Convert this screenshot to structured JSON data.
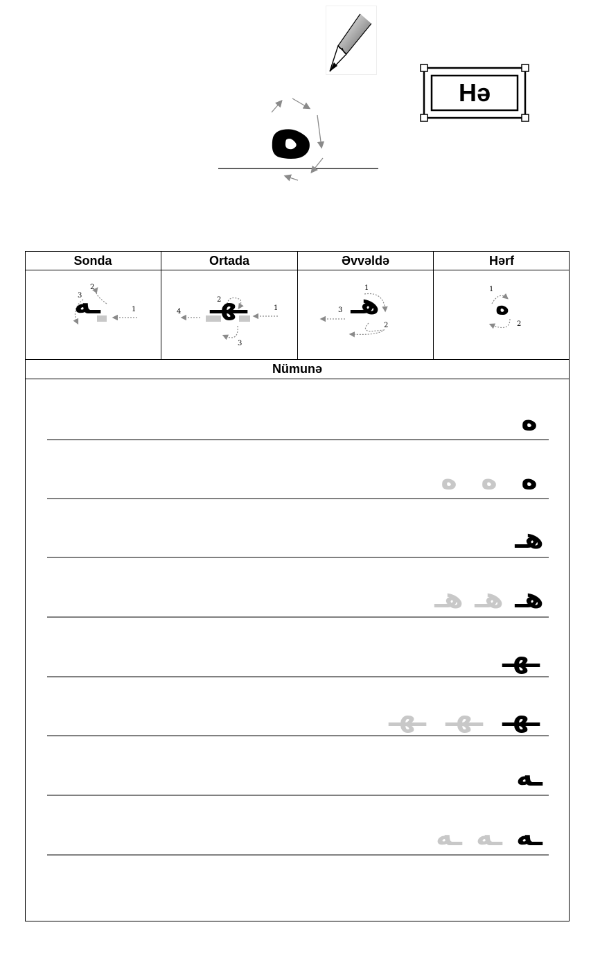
{
  "letter_label": "Hə",
  "main_glyph": "ه",
  "table": {
    "headers": {
      "sonda": "Sonda",
      "ortada": "Ortada",
      "evvelde": "Əvvəldə",
      "herf": "Hərf"
    },
    "sample_header": "Nümunə",
    "cells": {
      "sonda": {
        "glyph": "ـه",
        "steps": [
          "1",
          "2",
          "3"
        ]
      },
      "ortada": {
        "glyph": "ـهـ",
        "steps": [
          "1",
          "2",
          "3",
          "4"
        ]
      },
      "evvelde": {
        "glyph": "هـ",
        "steps": [
          "1",
          "2",
          "3"
        ]
      },
      "herf": {
        "glyph": "ه",
        "steps": [
          "1",
          "2"
        ]
      }
    }
  },
  "practice_rows": [
    {
      "glyph": "ه",
      "ghosts": 0
    },
    {
      "glyph": "ه",
      "ghosts": 2
    },
    {
      "glyph": "هـ",
      "ghosts": 0
    },
    {
      "glyph": "هـ",
      "ghosts": 2
    },
    {
      "glyph": "ـهـ",
      "ghosts": 0
    },
    {
      "glyph": "ـهـ",
      "ghosts": 2
    },
    {
      "glyph": "ـه",
      "ghosts": 0
    },
    {
      "glyph": "ـه",
      "ghosts": 2
    }
  ],
  "colors": {
    "ink": "#000000",
    "ghost": "#c8c8c8",
    "guide": "#808080",
    "arrow": "#8a8a8a"
  },
  "icons": [
    "pencil-icon",
    "stroke-arrow-icon"
  ]
}
